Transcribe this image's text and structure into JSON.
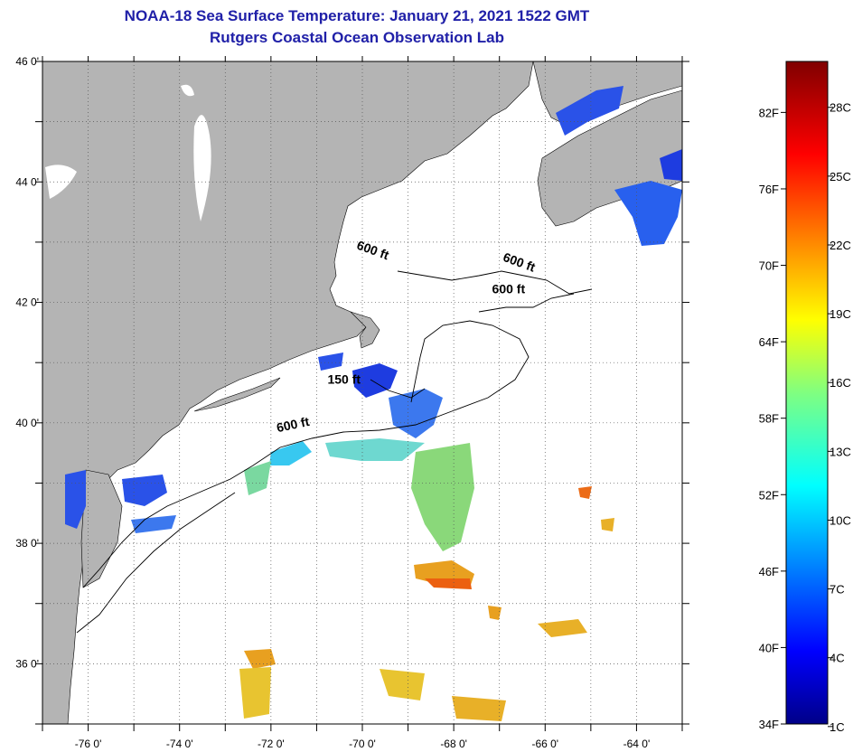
{
  "title": {
    "line1": "NOAA-18 Sea Surface Temperature:  January 21, 2021 1522 GMT",
    "line2": "Rutgers Coastal Ocean Observation Lab"
  },
  "map": {
    "lon_range": [
      -77,
      -63
    ],
    "lat_range": [
      35,
      46
    ],
    "lat_labels": [
      {
        "value": 46,
        "text": "46 0'"
      },
      {
        "value": 44,
        "text": "44 0'"
      },
      {
        "value": 42,
        "text": "42 0'"
      },
      {
        "value": 40,
        "text": "40 0'"
      },
      {
        "value": 38,
        "text": "38 0'"
      },
      {
        "value": 36,
        "text": "36 0'"
      }
    ],
    "lon_labels": [
      {
        "value": -76,
        "text": "-76 0'"
      },
      {
        "value": -74,
        "text": "-74 0'"
      },
      {
        "value": -72,
        "text": "-72 0'"
      },
      {
        "value": -70,
        "text": "-70 0'"
      },
      {
        "value": -68,
        "text": "-68 0'"
      },
      {
        "value": -66,
        "text": "-66 0'"
      },
      {
        "value": -64,
        "text": "-64 0'"
      }
    ],
    "depth_labels": [
      {
        "text": "600 ft",
        "lon": -69.8,
        "lat": 42.8
      },
      {
        "text": "600 ft",
        "lon": -66.6,
        "lat": 42.6
      },
      {
        "text": "600 ft",
        "lon": -66.8,
        "lat": 42.15
      },
      {
        "text": "150 ft",
        "lon": -70.4,
        "lat": 40.65
      },
      {
        "text": "600 ft",
        "lon": -71.5,
        "lat": 39.9
      }
    ],
    "colors": {
      "land": "#b4b4b4",
      "ocean": "#ffffff",
      "grid": "#555555"
    }
  },
  "colorbar": {
    "f_labels": [
      "82F",
      "76F",
      "70F",
      "64F",
      "58F",
      "52F",
      "46F",
      "40F",
      "34F"
    ],
    "c_labels": [
      "28C",
      "25C",
      "22C",
      "19C",
      "16C",
      "13C",
      "10C",
      "7C",
      "4C",
      "1C"
    ],
    "f_values": [
      82,
      76,
      70,
      64,
      58,
      52,
      46,
      40,
      34
    ],
    "c_values": [
      28,
      25,
      22,
      19,
      16,
      13,
      10,
      7,
      4,
      1
    ],
    "range_f": [
      34,
      86
    ]
  }
}
